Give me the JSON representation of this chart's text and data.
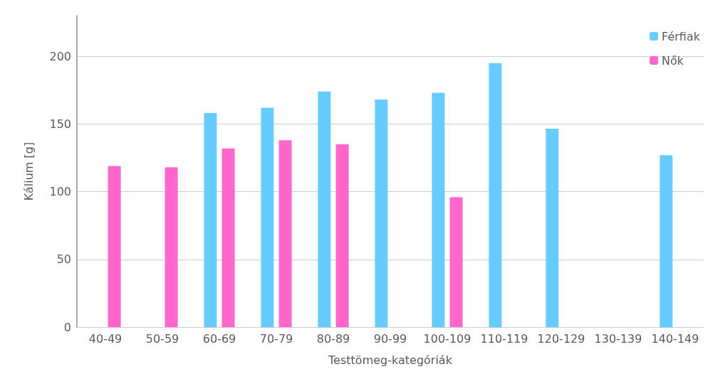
{
  "chart_data": {
    "type": "bar",
    "xlabel": "Testtömeg-kategóriák",
    "ylabel": "Kálium [g]",
    "categories": [
      "40-49",
      "50-59",
      "60-69",
      "70-79",
      "80-89",
      "90-99",
      "100-109",
      "110-119",
      "120-129",
      "130-139",
      "140-149"
    ],
    "series": [
      {
        "name": "Férfiak",
        "color": "#66ccff",
        "values": [
          null,
          null,
          158,
          162,
          174,
          168,
          173,
          195,
          146.5,
          null,
          127
        ]
      },
      {
        "name": "Nők",
        "color": "#ff66cc",
        "values": [
          119,
          118,
          132,
          138,
          135,
          null,
          96,
          null,
          null,
          null,
          null
        ]
      }
    ],
    "ylim": [
      0,
      230
    ],
    "yticks": [
      0,
      50,
      100,
      150,
      200
    ],
    "grid": "y",
    "legend": "top right"
  }
}
